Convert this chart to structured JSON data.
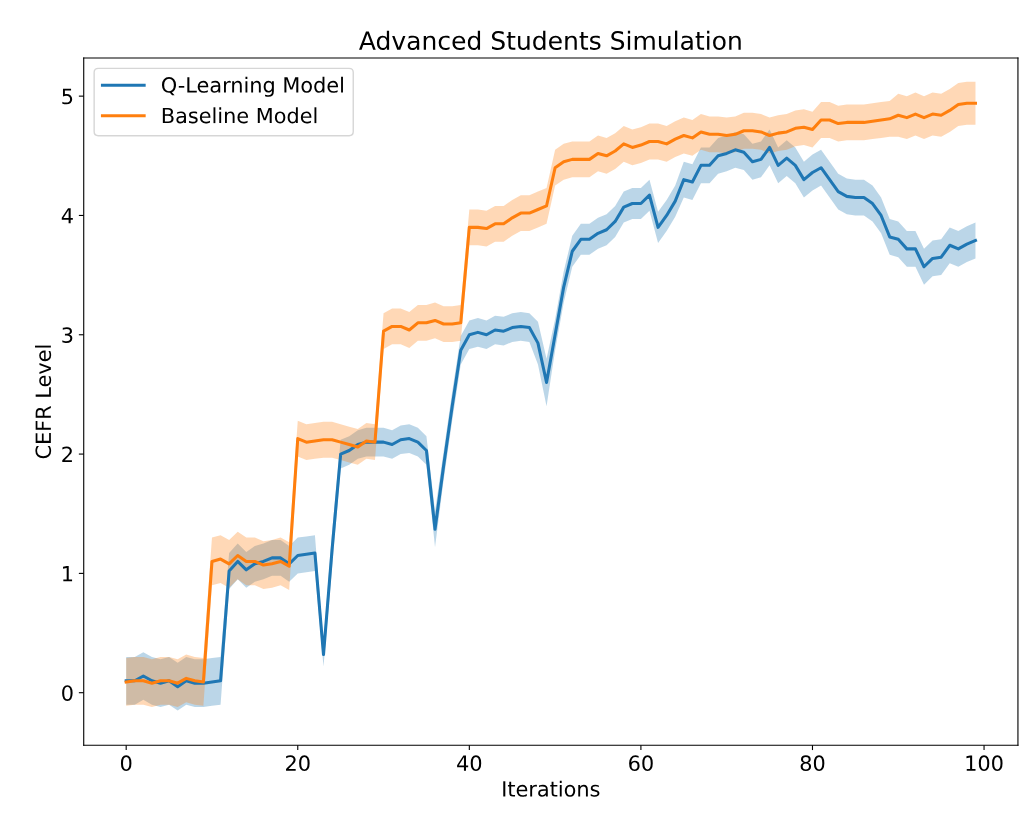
{
  "chart_data": {
    "type": "line",
    "title": "Advanced Students Simulation",
    "xlabel": "Iterations",
    "ylabel": "CEFR Level",
    "x": [
      0,
      1,
      2,
      3,
      4,
      5,
      6,
      7,
      8,
      9,
      10,
      11,
      12,
      13,
      14,
      15,
      16,
      17,
      18,
      19,
      20,
      21,
      22,
      23,
      24,
      25,
      26,
      27,
      28,
      29,
      30,
      31,
      32,
      33,
      34,
      35,
      36,
      37,
      38,
      39,
      40,
      41,
      42,
      43,
      44,
      45,
      46,
      47,
      48,
      49,
      50,
      51,
      52,
      53,
      54,
      55,
      56,
      57,
      58,
      59,
      60,
      61,
      62,
      63,
      64,
      65,
      66,
      67,
      68,
      69,
      70,
      71,
      72,
      73,
      74,
      75,
      76,
      77,
      78,
      79,
      80,
      81,
      82,
      83,
      84,
      85,
      86,
      87,
      88,
      89,
      90,
      91,
      92,
      93,
      94,
      95,
      96,
      97,
      98,
      99
    ],
    "series": [
      {
        "name": "Q-Learning Model",
        "color": "#1f77b4",
        "values": [
          0.1,
          0.1,
          0.14,
          0.1,
          0.08,
          0.1,
          0.05,
          0.1,
          0.08,
          0.08,
          0.09,
          0.1,
          1.02,
          1.1,
          1.03,
          1.08,
          1.1,
          1.13,
          1.13,
          1.08,
          1.15,
          1.16,
          1.17,
          0.32,
          1.2,
          2.0,
          2.03,
          2.08,
          2.1,
          2.1,
          2.1,
          2.08,
          2.12,
          2.13,
          2.1,
          2.03,
          1.37,
          1.9,
          2.4,
          2.87,
          3.0,
          3.02,
          3.0,
          3.04,
          3.03,
          3.06,
          3.07,
          3.06,
          2.93,
          2.6,
          3.0,
          3.4,
          3.7,
          3.8,
          3.8,
          3.85,
          3.88,
          3.95,
          4.07,
          4.1,
          4.1,
          4.17,
          3.9,
          4.0,
          4.12,
          4.3,
          4.28,
          4.42,
          4.42,
          4.5,
          4.52,
          4.55,
          4.53,
          4.45,
          4.47,
          4.57,
          4.42,
          4.48,
          4.42,
          4.3,
          4.36,
          4.4,
          4.3,
          4.2,
          4.16,
          4.15,
          4.15,
          4.1,
          4.0,
          3.82,
          3.8,
          3.72,
          3.72,
          3.57,
          3.64,
          3.65,
          3.75,
          3.72,
          3.76,
          3.79
        ],
        "lower": [
          -0.1,
          -0.1,
          -0.06,
          -0.1,
          -0.12,
          -0.1,
          -0.15,
          -0.1,
          -0.12,
          -0.12,
          -0.11,
          -0.1,
          0.87,
          0.95,
          0.88,
          0.93,
          0.95,
          0.98,
          0.98,
          0.93,
          1.0,
          1.01,
          1.02,
          0.22,
          1.05,
          1.88,
          1.91,
          1.96,
          1.98,
          1.98,
          1.98,
          1.96,
          2.0,
          2.01,
          1.98,
          1.91,
          1.22,
          1.78,
          2.28,
          2.75,
          2.88,
          2.9,
          2.88,
          2.92,
          2.91,
          2.94,
          2.95,
          2.94,
          2.75,
          2.4,
          2.87,
          3.27,
          3.57,
          3.67,
          3.67,
          3.72,
          3.75,
          3.82,
          3.94,
          3.97,
          3.97,
          4.04,
          3.77,
          3.87,
          3.99,
          4.15,
          4.13,
          4.27,
          4.27,
          4.35,
          4.37,
          4.4,
          4.38,
          4.3,
          4.32,
          4.42,
          4.27,
          4.33,
          4.27,
          4.15,
          4.21,
          4.25,
          4.15,
          4.05,
          4.01,
          4.0,
          4.0,
          3.95,
          3.85,
          3.67,
          3.65,
          3.57,
          3.57,
          3.42,
          3.49,
          3.5,
          3.6,
          3.57,
          3.61,
          3.64
        ],
        "upper": [
          0.3,
          0.3,
          0.34,
          0.3,
          0.28,
          0.3,
          0.25,
          0.3,
          0.28,
          0.28,
          0.29,
          0.3,
          1.17,
          1.25,
          1.18,
          1.23,
          1.25,
          1.28,
          1.28,
          1.23,
          1.3,
          1.31,
          1.32,
          0.42,
          1.35,
          2.12,
          2.15,
          2.2,
          2.22,
          2.22,
          2.22,
          2.2,
          2.24,
          2.25,
          2.22,
          2.15,
          1.52,
          2.02,
          2.52,
          2.99,
          3.12,
          3.14,
          3.12,
          3.16,
          3.15,
          3.18,
          3.19,
          3.18,
          3.11,
          2.8,
          3.13,
          3.53,
          3.83,
          3.93,
          3.93,
          3.98,
          4.01,
          4.08,
          4.2,
          4.23,
          4.23,
          4.3,
          4.03,
          4.13,
          4.25,
          4.45,
          4.43,
          4.57,
          4.57,
          4.65,
          4.67,
          4.7,
          4.68,
          4.6,
          4.62,
          4.72,
          4.57,
          4.63,
          4.57,
          4.45,
          4.51,
          4.55,
          4.45,
          4.35,
          4.31,
          4.3,
          4.3,
          4.25,
          4.15,
          3.97,
          3.95,
          3.87,
          3.87,
          3.72,
          3.79,
          3.8,
          3.9,
          3.87,
          3.91,
          3.94
        ]
      },
      {
        "name": "Baseline Model",
        "color": "#ff7f0e",
        "values": [
          0.09,
          0.1,
          0.1,
          0.08,
          0.1,
          0.1,
          0.08,
          0.12,
          0.1,
          0.09,
          1.1,
          1.12,
          1.08,
          1.15,
          1.1,
          1.1,
          1.07,
          1.08,
          1.1,
          1.06,
          2.13,
          2.1,
          2.11,
          2.12,
          2.12,
          2.1,
          2.08,
          2.06,
          2.11,
          2.1,
          3.03,
          3.07,
          3.07,
          3.04,
          3.1,
          3.1,
          3.12,
          3.09,
          3.09,
          3.1,
          3.9,
          3.9,
          3.89,
          3.93,
          3.93,
          3.98,
          4.02,
          4.02,
          4.05,
          4.08,
          4.4,
          4.45,
          4.47,
          4.47,
          4.47,
          4.52,
          4.5,
          4.54,
          4.6,
          4.57,
          4.59,
          4.62,
          4.62,
          4.6,
          4.64,
          4.67,
          4.65,
          4.7,
          4.68,
          4.68,
          4.67,
          4.68,
          4.71,
          4.71,
          4.7,
          4.67,
          4.69,
          4.7,
          4.73,
          4.74,
          4.72,
          4.8,
          4.8,
          4.77,
          4.78,
          4.78,
          4.78,
          4.79,
          4.8,
          4.81,
          4.84,
          4.82,
          4.85,
          4.82,
          4.85,
          4.84,
          4.88,
          4.93,
          4.94,
          4.94
        ],
        "lower": [
          -0.11,
          -0.1,
          -0.1,
          -0.12,
          -0.1,
          -0.1,
          -0.12,
          -0.08,
          -0.1,
          -0.11,
          0.9,
          0.92,
          0.88,
          0.95,
          0.9,
          0.9,
          0.87,
          0.88,
          0.9,
          0.86,
          1.98,
          1.95,
          1.96,
          1.97,
          1.97,
          1.95,
          1.93,
          1.91,
          1.96,
          1.95,
          2.88,
          2.92,
          2.92,
          2.89,
          2.95,
          2.95,
          2.97,
          2.94,
          2.94,
          2.95,
          3.75,
          3.75,
          3.74,
          3.78,
          3.78,
          3.83,
          3.87,
          3.87,
          3.9,
          3.93,
          4.25,
          4.3,
          4.32,
          4.32,
          4.32,
          4.37,
          4.35,
          4.39,
          4.45,
          4.42,
          4.44,
          4.47,
          4.47,
          4.45,
          4.49,
          4.52,
          4.5,
          4.55,
          4.53,
          4.53,
          4.52,
          4.53,
          4.56,
          4.56,
          4.55,
          4.52,
          4.54,
          4.55,
          4.58,
          4.59,
          4.57,
          4.65,
          4.65,
          4.62,
          4.63,
          4.63,
          4.63,
          4.64,
          4.65,
          4.66,
          4.66,
          4.64,
          4.67,
          4.64,
          4.67,
          4.66,
          4.7,
          4.75,
          4.76,
          4.76
        ],
        "upper": [
          0.29,
          0.3,
          0.3,
          0.28,
          0.3,
          0.3,
          0.28,
          0.32,
          0.3,
          0.29,
          1.3,
          1.32,
          1.28,
          1.35,
          1.3,
          1.3,
          1.27,
          1.28,
          1.3,
          1.26,
          2.28,
          2.25,
          2.26,
          2.27,
          2.27,
          2.25,
          2.23,
          2.21,
          2.26,
          2.25,
          3.18,
          3.22,
          3.22,
          3.19,
          3.25,
          3.25,
          3.27,
          3.24,
          3.24,
          3.25,
          4.05,
          4.05,
          4.04,
          4.08,
          4.08,
          4.13,
          4.17,
          4.17,
          4.2,
          4.23,
          4.55,
          4.6,
          4.62,
          4.62,
          4.62,
          4.67,
          4.65,
          4.69,
          4.75,
          4.72,
          4.74,
          4.77,
          4.77,
          4.75,
          4.79,
          4.82,
          4.8,
          4.85,
          4.83,
          4.83,
          4.82,
          4.83,
          4.86,
          4.86,
          4.85,
          4.82,
          4.84,
          4.85,
          4.88,
          4.89,
          4.87,
          4.95,
          4.95,
          4.92,
          4.93,
          4.93,
          4.93,
          4.94,
          4.95,
          4.96,
          5.02,
          5.0,
          5.03,
          5.0,
          5.03,
          5.02,
          5.06,
          5.11,
          5.12,
          5.12
        ]
      }
    ],
    "xlim": [
      -4.95,
      103.95
    ],
    "xticks": [
      0,
      20,
      40,
      60,
      80,
      100
    ],
    "ylim": [
      -0.44,
      5.32
    ],
    "yticks": [
      0,
      1,
      2,
      3,
      4,
      5
    ],
    "legend": "top left",
    "grid": false,
    "marker": "none",
    "line_style": "solid"
  }
}
